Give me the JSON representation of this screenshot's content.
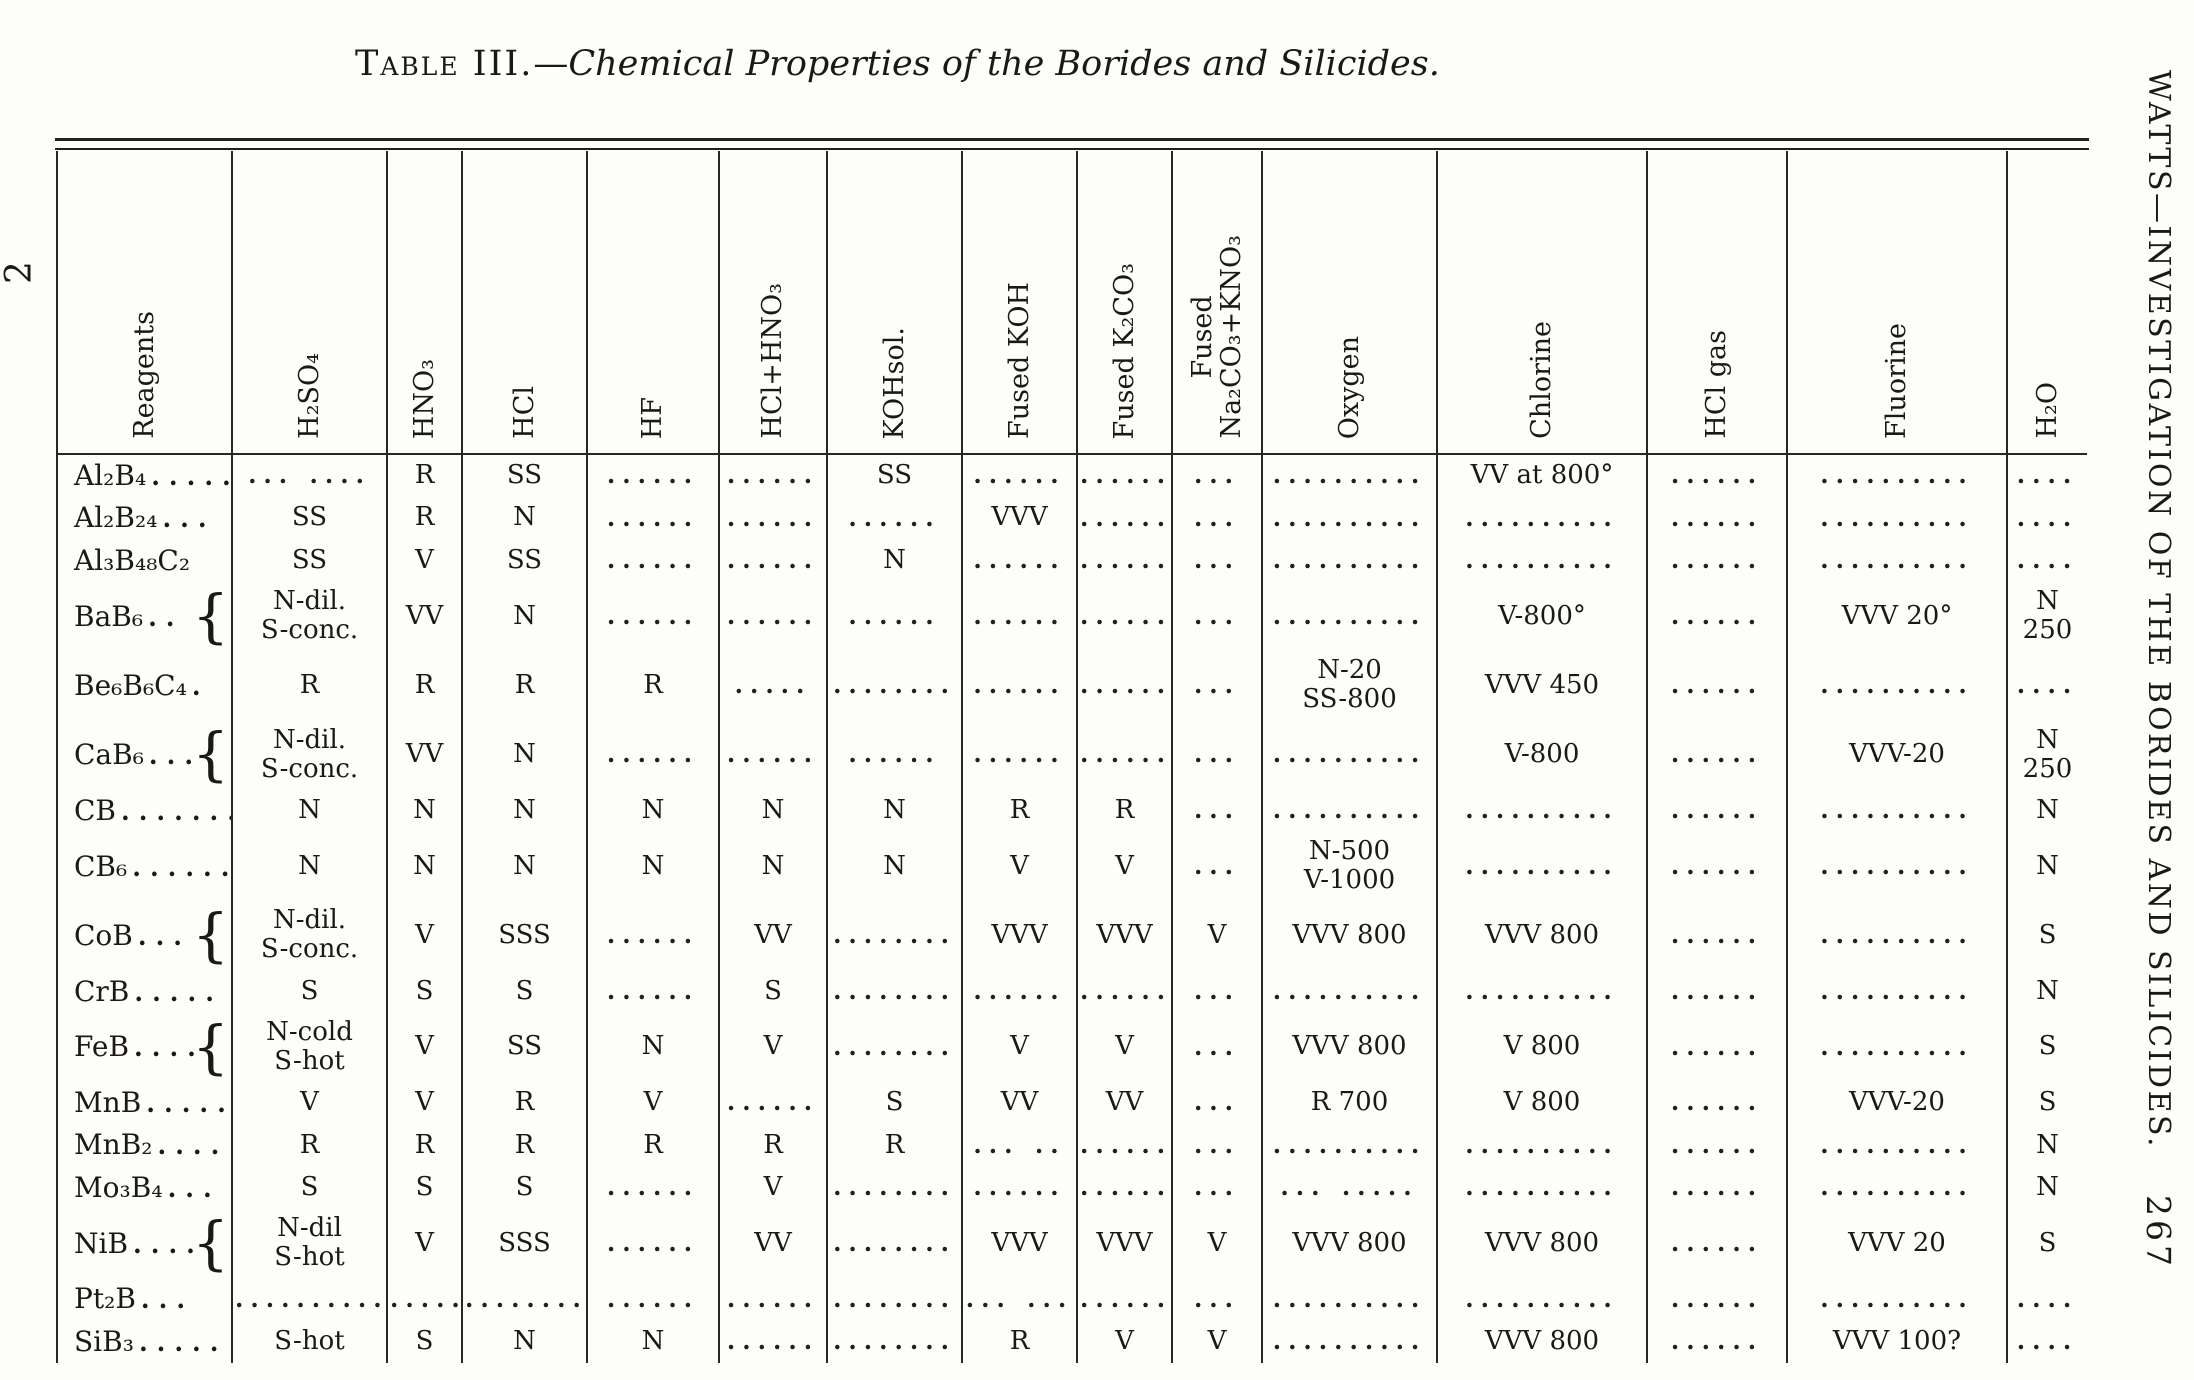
{
  "page": {
    "background": "#fdfdfb",
    "ink": "#1c1915",
    "left_margin_note": "2",
    "side_heading": "WATTS—INVESTIGATION OF THE BORIDES AND SILICIDES.",
    "page_number": "267"
  },
  "title": {
    "label": "Table III.",
    "rest": "—Chemical Properties of the Borides and Silicides."
  },
  "table": {
    "columns": [
      {
        "key": "reagents",
        "label": "Reagents"
      },
      {
        "key": "h2so4",
        "label": "H₂SO₄"
      },
      {
        "key": "hno3",
        "label": "HNO₃"
      },
      {
        "key": "hcl",
        "label": "HCl"
      },
      {
        "key": "hf",
        "label": "HF"
      },
      {
        "key": "hcl-hno3",
        "label": "HCl+HNO₃"
      },
      {
        "key": "koh-sol",
        "label": "KOHsol."
      },
      {
        "key": "fused-koh",
        "label": "Fused KOH"
      },
      {
        "key": "fused-k2co3",
        "label": "Fused K₂CO₃"
      },
      {
        "key": "fused-na2co3-kno3",
        "label": "Fused\nNa₂CO₃+KNO₃"
      },
      {
        "key": "oxygen",
        "label": "Oxygen"
      },
      {
        "key": "chlorine",
        "label": "Chlorine"
      },
      {
        "key": "hcl-gas",
        "label": "HCl gas"
      },
      {
        "key": "fluorine",
        "label": "Fluorine"
      },
      {
        "key": "h2o",
        "label": "H₂O"
      }
    ],
    "rows": [
      {
        "formula": "Al₂B₄",
        "leader": ".....",
        "brace": false,
        "cells": [
          "... ....",
          "R",
          "SS",
          "......",
          "......",
          "SS",
          "......",
          "......",
          "...",
          "..........",
          "VV at 800°",
          "......",
          "..........",
          "...."
        ]
      },
      {
        "formula": "Al₂B₂₄",
        "leader": "...",
        "brace": false,
        "cells": [
          "SS",
          "R",
          "N",
          "......",
          "......",
          "......",
          "VVV",
          "......",
          "...",
          "..........",
          "..........",
          "......",
          "..........",
          "...."
        ]
      },
      {
        "formula": "Al₃B₄₈C₂",
        "leader": "",
        "brace": false,
        "cells": [
          "SS",
          "V",
          "SS",
          "......",
          "......",
          "N",
          "......",
          "......",
          "...",
          "..........",
          "..........",
          "......",
          "..........",
          "...."
        ]
      },
      {
        "formula": "BaB₆",
        "leader": "..",
        "brace": true,
        "cells": [
          "N-dil.\nS-conc.",
          "VV",
          "N",
          "......",
          "......",
          "......",
          "......",
          "......",
          "...",
          "..........",
          "V-800°",
          "......",
          "VVV 20°",
          "N\n250"
        ]
      },
      {
        "formula": "Be₆B₆C₄",
        "leader": ".",
        "brace": false,
        "cells": [
          "R",
          "R",
          "R",
          "R",
          ".....",
          "........",
          "......",
          "......",
          "...",
          "N-20\nSS-800",
          "VVV 450",
          "......",
          "..........",
          "...."
        ]
      },
      {
        "formula": "CaB₆",
        "leader": "...",
        "brace": true,
        "cells": [
          "N-dil.\nS-conc.",
          "VV",
          "N",
          "......",
          "......",
          "......",
          "......",
          "......",
          "...",
          "..........",
          "V-800",
          "......",
          "VVV-20",
          "N\n250"
        ]
      },
      {
        "formula": "CB",
        "leader": ".......",
        "brace": false,
        "cells": [
          "N",
          "N",
          "N",
          "N",
          "N",
          "N",
          "R",
          "R",
          "...",
          "..........",
          "..........",
          "......",
          "..........",
          "N"
        ]
      },
      {
        "formula": "CB₆",
        "leader": ".......",
        "brace": false,
        "cells": [
          "N",
          "N",
          "N",
          "N",
          "N",
          "N",
          "V",
          "V",
          "...",
          "N-500\nV-1000",
          "..........",
          "......",
          "..........",
          "N"
        ]
      },
      {
        "formula": "CoB",
        "leader": "...",
        "brace": true,
        "cells": [
          "N-dil.\nS-conc.",
          "V",
          "SSS",
          "......",
          "VV",
          "........",
          "VVV",
          "VVV",
          "V",
          "VVV 800",
          "VVV 800",
          "......",
          "..........",
          "S"
        ]
      },
      {
        "formula": "CrB",
        "leader": ".....",
        "brace": false,
        "cells": [
          "S",
          "S",
          "S",
          "......",
          "S",
          "........",
          "......",
          "......",
          "...",
          "..........",
          "..........",
          "......",
          "..........",
          "N"
        ]
      },
      {
        "formula": "FeB",
        "leader": "....",
        "brace": true,
        "cells": [
          "N-cold\nS-hot",
          "V",
          "SS",
          "N",
          "V",
          "........",
          "V",
          "V",
          "...",
          "VVV 800",
          "V 800",
          "......",
          "..........",
          "S"
        ]
      },
      {
        "formula": "MnB",
        "leader": ".....",
        "brace": false,
        "cells": [
          "V",
          "V",
          "R",
          "V",
          "......",
          "S",
          "VV",
          "VV",
          "...",
          "R 700",
          "V 800",
          "......",
          "VVV-20",
          "S"
        ]
      },
      {
        "formula": "MnB₂",
        "leader": "....",
        "brace": false,
        "cells": [
          "R",
          "R",
          "R",
          "R",
          "R",
          "R",
          "... ..",
          "......",
          "...",
          "..........",
          "..........",
          "......",
          "..........",
          "N"
        ]
      },
      {
        "formula": "Mo₃B₄",
        "leader": "...",
        "brace": false,
        "cells": [
          "S",
          "S",
          "S",
          "......",
          "V",
          "........",
          "......",
          "......",
          "...",
          "... .....",
          "..........",
          "......",
          "..........",
          "N"
        ]
      },
      {
        "formula": "NiB",
        "leader": "....",
        "brace": true,
        "cells": [
          "N-dil\nS-hot",
          "V",
          "SSS",
          "......",
          "VV",
          "........",
          "VVV",
          "VVV",
          "V",
          "VVV 800",
          "VVV 800",
          "......",
          "VVV 20",
          "S"
        ]
      },
      {
        "formula": "Pt₂B",
        "leader": "...",
        "brace": false,
        "cells": [
          "..........",
          "......",
          "..........",
          "......",
          "......",
          "........",
          "... ...",
          "......",
          "...",
          "..........",
          "..........",
          "......",
          "..........",
          "...."
        ]
      },
      {
        "formula": "SiB₃",
        "leader": ".....",
        "brace": false,
        "cells": [
          "S-hot",
          "S",
          "N",
          "N",
          "......",
          "........",
          "R",
          "V",
          "V",
          "..........",
          "VVV 800",
          "......",
          "VVV 100?",
          "...."
        ]
      }
    ]
  }
}
